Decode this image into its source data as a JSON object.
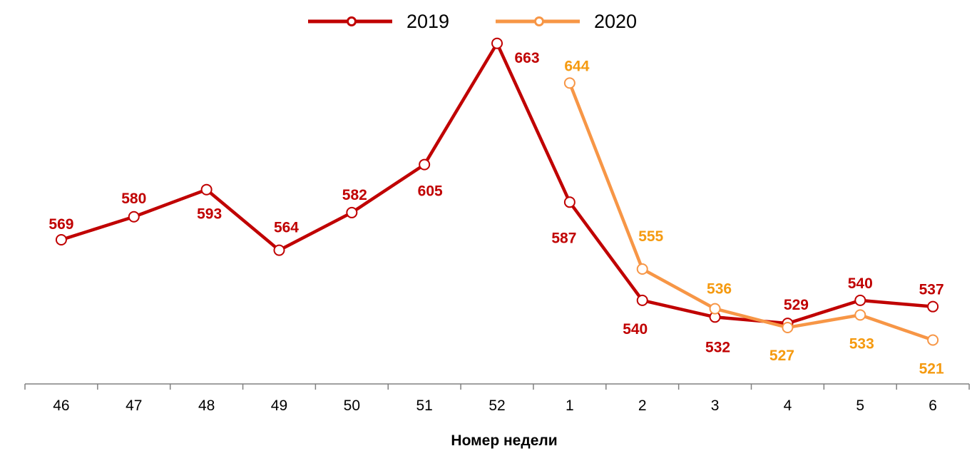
{
  "chart_data": {
    "type": "line",
    "title": "",
    "xlabel": "Номер недели",
    "ylabel": "",
    "categories": [
      "46",
      "47",
      "48",
      "49",
      "50",
      "51",
      "52",
      "1",
      "2",
      "3",
      "4",
      "5",
      "6"
    ],
    "ylim": [
      500,
      680
    ],
    "grid": false,
    "legend": "top",
    "series": [
      {
        "name": "2019",
        "color": "#C00000",
        "label_color": "#C00000",
        "values": [
          569,
          580,
          593,
          564,
          582,
          605,
          663,
          587,
          540,
          532,
          529,
          540,
          537
        ]
      },
      {
        "name": "2020",
        "color": "#F79646",
        "label_color": "#F59A10",
        "values": [
          null,
          null,
          null,
          null,
          null,
          null,
          null,
          644,
          555,
          536,
          527,
          533,
          521
        ]
      }
    ]
  }
}
